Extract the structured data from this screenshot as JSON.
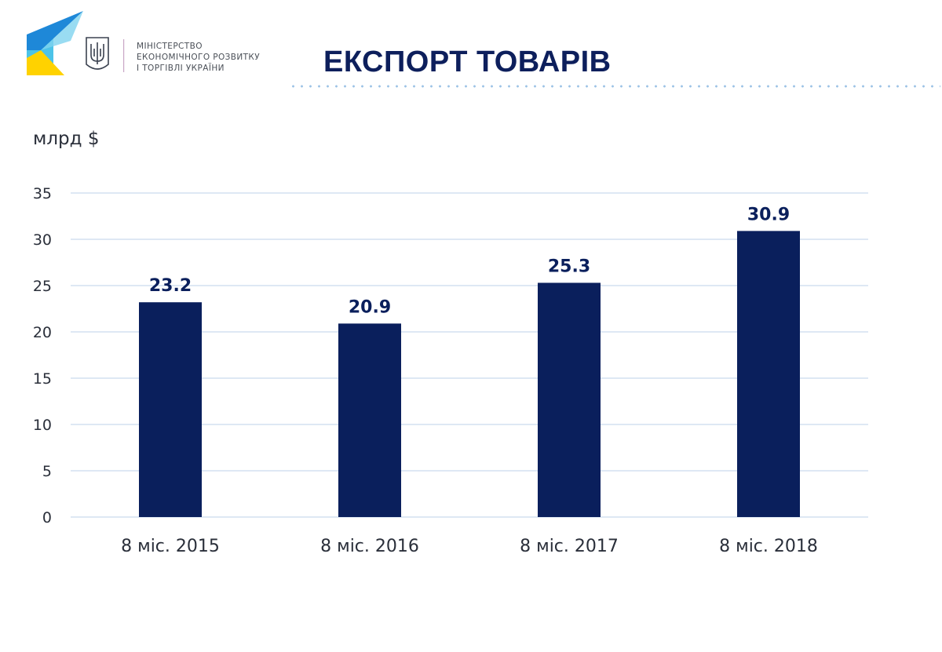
{
  "header": {
    "org_lines": [
      "МІНІСТЕРСТВО",
      "ЕКОНОМІЧНОГО РОЗВИТКУ",
      "І ТОРГІВЛІ УКРАЇНИ"
    ],
    "title": "ЕКСПОРТ ТОВАРІВ"
  },
  "colors": {
    "bar": "#0a1f5c",
    "grid": "#bcd2ea",
    "title": "#0d1f5c",
    "logo_blue": "#1e88d8",
    "logo_cyan": "#4cc3e8",
    "logo_yellow": "#ffd200"
  },
  "icons": [
    "logo-emblem-icon",
    "trident-coat-of-arms-icon"
  ],
  "chart_data": {
    "type": "bar",
    "title": "ЕКСПОРТ ТОВАРІВ",
    "ylabel": "млрд $",
    "xlabel": "",
    "categories": [
      "8 міс. 2015",
      "8 міс. 2016",
      "8 міс. 2017",
      "8 міс. 2018"
    ],
    "values": [
      23.2,
      20.9,
      25.3,
      30.9
    ],
    "data_labels": [
      "23.2",
      "20.9",
      "25.3",
      "30.9"
    ],
    "ylim": [
      0,
      35
    ],
    "yticks": [
      0,
      5,
      10,
      15,
      20,
      25,
      30,
      35
    ],
    "grid": true,
    "legend": "none"
  }
}
